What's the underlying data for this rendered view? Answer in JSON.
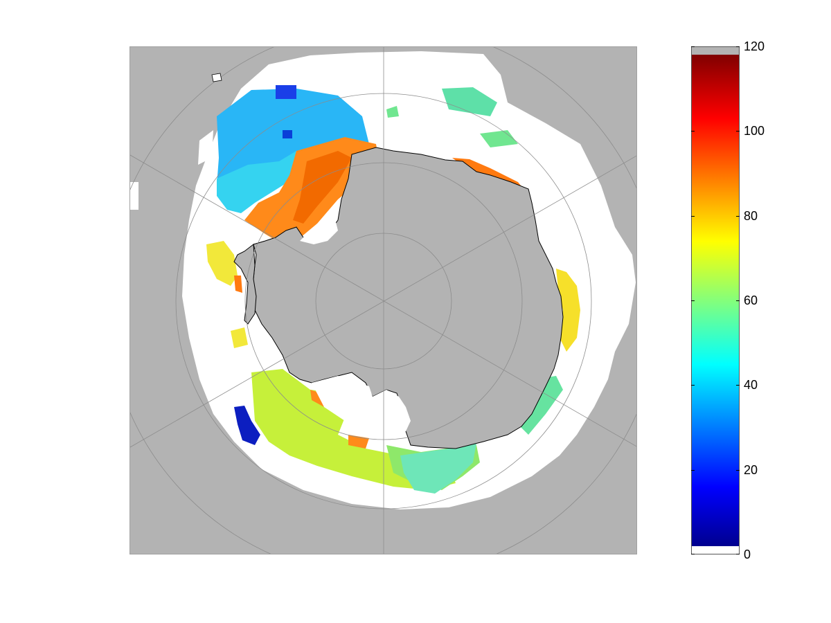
{
  "map": {
    "projection": "south-polar-stereographic",
    "land_color": "#b3b3b3",
    "no_data_color": "#ffffff",
    "coastline_color": "#000000",
    "graticule_color": "#8c8c8c"
  },
  "colorbar": {
    "colormap": "jet",
    "min": 0,
    "max": 120,
    "top_cap_color": "#b3b3b3",
    "bottom_cap_color": "#ffffff",
    "ticks": [
      "0",
      "20",
      "40",
      "60",
      "80",
      "100",
      "120"
    ]
  }
}
